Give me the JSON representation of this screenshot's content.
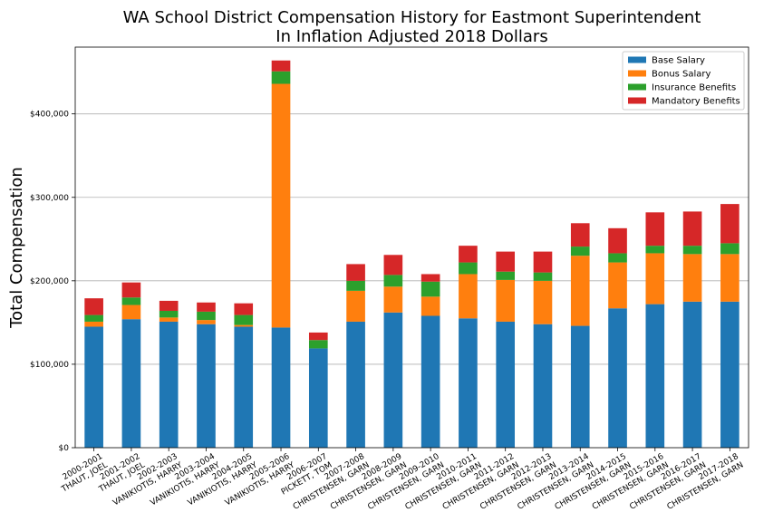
{
  "chart_data": {
    "type": "bar",
    "stacked": true,
    "title": [
      "WA School District Compensation History for Eastmont Superintendent",
      "In Inflation Adjusted 2018 Dollars"
    ],
    "ylabel": "Total Compensation",
    "xlabel": "",
    "ylim": [
      0,
      480000
    ],
    "yticks": [
      0,
      100000,
      200000,
      300000,
      400000
    ],
    "ytick_labels": [
      "$0",
      "$100,000",
      "$200,000",
      "$300,000",
      "$400,000"
    ],
    "grid": "y",
    "legend_position": "top-right",
    "categories": [
      [
        "2000-2001",
        "THAUT, JOEL"
      ],
      [
        "2001-2002",
        "THAUT, JOEL"
      ],
      [
        "2002-2003",
        "VANIKIOTIS, HARRY"
      ],
      [
        "2003-2004",
        "VANIKIOTIS, HARRY"
      ],
      [
        "2004-2005",
        "VANIKIOTIS, HARRY"
      ],
      [
        "2005-2006",
        "VANIKIOTIS, HARRY"
      ],
      [
        "2006-2007",
        "PICKETT, TOM"
      ],
      [
        "2007-2008",
        "CHRISTENSEN, GARN"
      ],
      [
        "2008-2009",
        "CHRISTENSEN, GARN"
      ],
      [
        "2009-2010",
        "CHRISTENSEN, GARN"
      ],
      [
        "2010-2011",
        "CHRISTENSEN, GARN"
      ],
      [
        "2011-2012",
        "CHRISTENSEN, GARN"
      ],
      [
        "2012-2013",
        "CHRISTENSEN, GARN"
      ],
      [
        "2013-2014",
        "CHRISTENSEN, GARN"
      ],
      [
        "2014-2015",
        "CHRISTENSEN, GARN"
      ],
      [
        "2015-2016",
        "CHRISTENSEN, GARN"
      ],
      [
        "2016-2017",
        "CHRISTENSEN, GARN"
      ],
      [
        "2017-2018",
        "CHRISTENSEN, GARN"
      ]
    ],
    "series": [
      {
        "name": "Base Salary",
        "color": "#1f77b4",
        "values": [
          145000,
          154000,
          151000,
          148000,
          145000,
          144000,
          119000,
          151000,
          162000,
          158000,
          155000,
          151000,
          148000,
          146000,
          167000,
          172000,
          175000,
          175000
        ]
      },
      {
        "name": "Bonus Salary",
        "color": "#ff7f0e",
        "values": [
          6000,
          17000,
          5000,
          5000,
          2000,
          292000,
          0,
          37000,
          31000,
          23000,
          53000,
          50000,
          52000,
          84000,
          55000,
          61000,
          57000,
          57000
        ]
      },
      {
        "name": "Insurance Benefits",
        "color": "#2ca02c",
        "values": [
          8000,
          9000,
          8000,
          10000,
          12000,
          15000,
          10000,
          12000,
          14000,
          18000,
          14000,
          10000,
          10000,
          11000,
          11000,
          9000,
          10000,
          13000
        ]
      },
      {
        "name": "Mandatory Benefits",
        "color": "#d62728",
        "values": [
          20000,
          18000,
          12000,
          11000,
          14000,
          13000,
          9000,
          20000,
          24000,
          9000,
          20000,
          24000,
          25000,
          28000,
          30000,
          40000,
          41000,
          47000
        ]
      }
    ]
  }
}
